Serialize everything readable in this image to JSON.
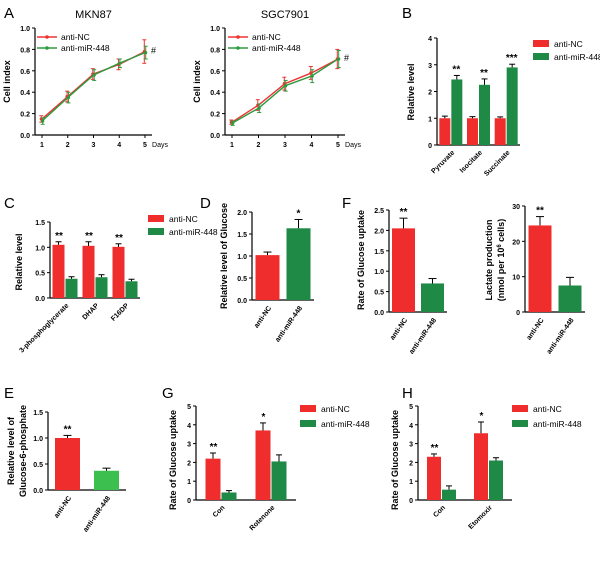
{
  "colors": {
    "nc": "#ef2d2d",
    "miR": "#1f8a46",
    "nc_line": "#ee3333",
    "miR_line": "#2e9a3e",
    "light_green": "#3dbf4f",
    "axis": "#000000"
  },
  "legend": {
    "nc": "anti-NC",
    "miR": "anti-miR-448"
  },
  "chart_data": [
    {
      "panel": "A",
      "type": "line",
      "title": "MKN87",
      "x": [
        1,
        2,
        3,
        4,
        5
      ],
      "xlabel": "Days",
      "ylabel": "Cell index",
      "ylim": [
        0.0,
        1.0
      ],
      "yticks": [
        "0.0",
        "0.2",
        "0.4",
        "0.6",
        "0.8",
        "1.0"
      ],
      "series": [
        {
          "name": "anti-NC",
          "values": [
            0.15,
            0.36,
            0.57,
            0.66,
            0.78
          ],
          "errors": [
            0.03,
            0.05,
            0.05,
            0.05,
            0.11
          ]
        },
        {
          "name": "anti-miR-448",
          "values": [
            0.13,
            0.35,
            0.56,
            0.67,
            0.77
          ],
          "errors": [
            0.03,
            0.05,
            0.05,
            0.04,
            0.06
          ]
        }
      ],
      "annotation": "#"
    },
    {
      "panel": "A",
      "type": "line",
      "title": "SGC7901",
      "x": [
        1,
        2,
        3,
        4,
        5
      ],
      "xlabel": "Days",
      "ylabel": "Cell index",
      "ylim": [
        0.0,
        1.0
      ],
      "yticks": [
        "0.0",
        "0.2",
        "0.4",
        "0.6",
        "0.8",
        "1.0"
      ],
      "series": [
        {
          "name": "anti-NC",
          "values": [
            0.12,
            0.28,
            0.48,
            0.58,
            0.71
          ],
          "errors": [
            0.02,
            0.05,
            0.06,
            0.06,
            0.09
          ]
        },
        {
          "name": "anti-miR-448",
          "values": [
            0.11,
            0.25,
            0.46,
            0.55,
            0.71
          ],
          "errors": [
            0.02,
            0.04,
            0.05,
            0.06,
            0.08
          ]
        }
      ],
      "annotation": "#"
    },
    {
      "panel": "B",
      "type": "bar",
      "ylabel": "Relative level",
      "categories": [
        "Pyruvate",
        "Isocitate",
        "Succinate"
      ],
      "ylim": [
        0,
        4
      ],
      "yticks": [
        "0",
        "1",
        "2",
        "3",
        "4"
      ],
      "series": [
        {
          "name": "anti-NC",
          "values": [
            1.0,
            1.0,
            1.0
          ],
          "errors": [
            0.08,
            0.06,
            0.05
          ]
        },
        {
          "name": "anti-miR-448",
          "values": [
            2.45,
            2.25,
            2.9
          ],
          "errors": [
            0.15,
            0.22,
            0.12
          ]
        }
      ],
      "significance": [
        "**",
        "**",
        "***"
      ]
    },
    {
      "panel": "C",
      "type": "bar",
      "ylabel": "Relative level",
      "categories": [
        "3-phosphoglycerate",
        "DHAP",
        "F16DP"
      ],
      "ylim": [
        0.0,
        1.5
      ],
      "yticks": [
        "0.0",
        "0.5",
        "1.0",
        "1.5"
      ],
      "series": [
        {
          "name": "anti-NC",
          "values": [
            1.05,
            1.03,
            1.01
          ],
          "errors": [
            0.06,
            0.08,
            0.06
          ]
        },
        {
          "name": "anti-miR-448",
          "values": [
            0.38,
            0.41,
            0.33
          ],
          "errors": [
            0.04,
            0.05,
            0.04
          ]
        }
      ],
      "significance": [
        "**",
        "**",
        "**"
      ]
    },
    {
      "panel": "D",
      "type": "bar",
      "ylabel": "Relative level of Glucose",
      "categories": [
        "anti-NC",
        "anti-miR-448"
      ],
      "ylim": [
        0.0,
        2.0
      ],
      "yticks": [
        "0.0",
        "0.5",
        "1.0",
        "1.5",
        "2.0"
      ],
      "values": [
        1.02,
        1.63
      ],
      "errors": [
        0.07,
        0.2
      ],
      "significance": [
        "",
        "*"
      ]
    },
    {
      "panel": "F",
      "type": "bar",
      "ylabel": "Rate of Glucose uptake",
      "categories": [
        "anti-NC",
        "anti-miR-448"
      ],
      "ylim": [
        0.0,
        2.5
      ],
      "yticks": [
        "0.0",
        "0.5",
        "1.0",
        "1.5",
        "2.0",
        "2.5"
      ],
      "values": [
        2.05,
        0.7
      ],
      "errors": [
        0.25,
        0.12
      ],
      "significance": [
        "**",
        ""
      ]
    },
    {
      "panel": "F",
      "type": "bar",
      "ylabel_line1": "Lactate production",
      "ylabel_line2": "(nmol per 10",
      "ylabel_sup": "6",
      "ylabel_tail": " cells)",
      "categories": [
        "anti-NC",
        "anti-miR-448"
      ],
      "ylim": [
        0,
        30
      ],
      "yticks": [
        "0",
        "10",
        "20",
        "30"
      ],
      "values": [
        24.5,
        7.5
      ],
      "errors": [
        2.5,
        2.3
      ],
      "significance": [
        "**",
        ""
      ]
    },
    {
      "panel": "E",
      "type": "bar",
      "ylabel_line1": "Relative level of",
      "ylabel_line2": "Glucose-6-phosphate",
      "categories": [
        "anti-NC",
        "anti-miR-448"
      ],
      "ylim": [
        0.0,
        1.5
      ],
      "yticks": [
        "0.0",
        "0.5",
        "1.0",
        "1.5"
      ],
      "values": [
        1.0,
        0.37
      ],
      "errors": [
        0.05,
        0.05
      ],
      "significance": [
        "**",
        ""
      ]
    },
    {
      "panel": "G",
      "type": "bar",
      "ylabel": "Rate of Glucose uptake",
      "categories": [
        "Con",
        "Rotenone"
      ],
      "ylim": [
        0,
        5
      ],
      "yticks": [
        "0",
        "1",
        "2",
        "3",
        "4",
        "5"
      ],
      "series": [
        {
          "name": "anti-NC",
          "values": [
            2.2,
            3.7
          ],
          "errors": [
            0.3,
            0.4
          ]
        },
        {
          "name": "anti-miR-448",
          "values": [
            0.4,
            2.05
          ],
          "errors": [
            0.1,
            0.35
          ]
        }
      ],
      "significance": [
        "**",
        "*"
      ]
    },
    {
      "panel": "H",
      "type": "bar",
      "ylabel": "Rate of Glucose uptake",
      "categories": [
        "Con",
        "Etomoxir"
      ],
      "ylim": [
        0,
        5
      ],
      "yticks": [
        "0",
        "1",
        "2",
        "3",
        "4",
        "5"
      ],
      "series": [
        {
          "name": "anti-NC",
          "values": [
            2.3,
            3.55
          ],
          "errors": [
            0.15,
            0.6
          ]
        },
        {
          "name": "anti-miR-448",
          "values": [
            0.55,
            2.1
          ],
          "errors": [
            0.2,
            0.15
          ]
        }
      ],
      "significance": [
        "**",
        "*"
      ]
    }
  ]
}
